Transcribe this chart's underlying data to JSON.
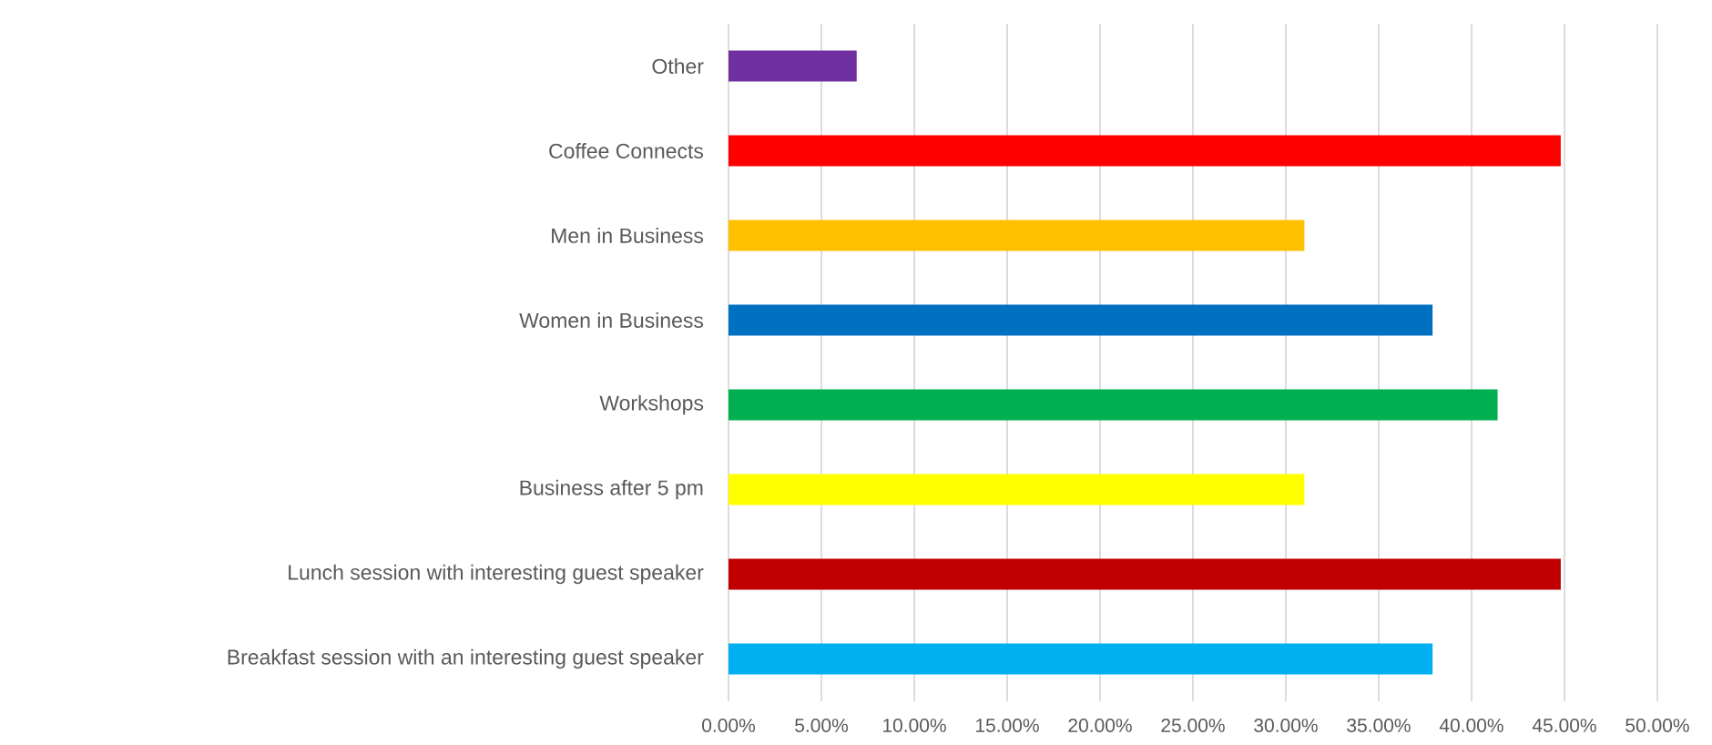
{
  "chart_data": {
    "type": "bar",
    "orientation": "horizontal",
    "categories": [
      "Other",
      "Coffee Connects",
      "Men in Business",
      "Women in Business",
      "Workshops",
      "Business after 5 pm",
      "Lunch session with interesting guest speaker",
      "Breakfast session with an interesting guest speaker"
    ],
    "values": [
      6.9,
      44.8,
      31.0,
      37.9,
      41.4,
      31.0,
      44.8,
      37.9
    ],
    "colors": [
      "#7030a0",
      "#ff0000",
      "#ffc000",
      "#0070c0",
      "#00b050",
      "#ffff00",
      "#c00000",
      "#00b0f0"
    ],
    "xlim": [
      0,
      50
    ],
    "xticks": [
      {
        "value": 0,
        "label": "0.00%"
      },
      {
        "value": 5,
        "label": "5.00%"
      },
      {
        "value": 10,
        "label": "10.00%"
      },
      {
        "value": 15,
        "label": "15.00%"
      },
      {
        "value": 20,
        "label": "20.00%"
      },
      {
        "value": 25,
        "label": "25.00%"
      },
      {
        "value": 30,
        "label": "30.00%"
      },
      {
        "value": 35,
        "label": "35.00%"
      },
      {
        "value": 40,
        "label": "40.00%"
      },
      {
        "value": 45,
        "label": "45.00%"
      },
      {
        "value": 50,
        "label": "50.00%"
      }
    ],
    "grid": "x"
  }
}
